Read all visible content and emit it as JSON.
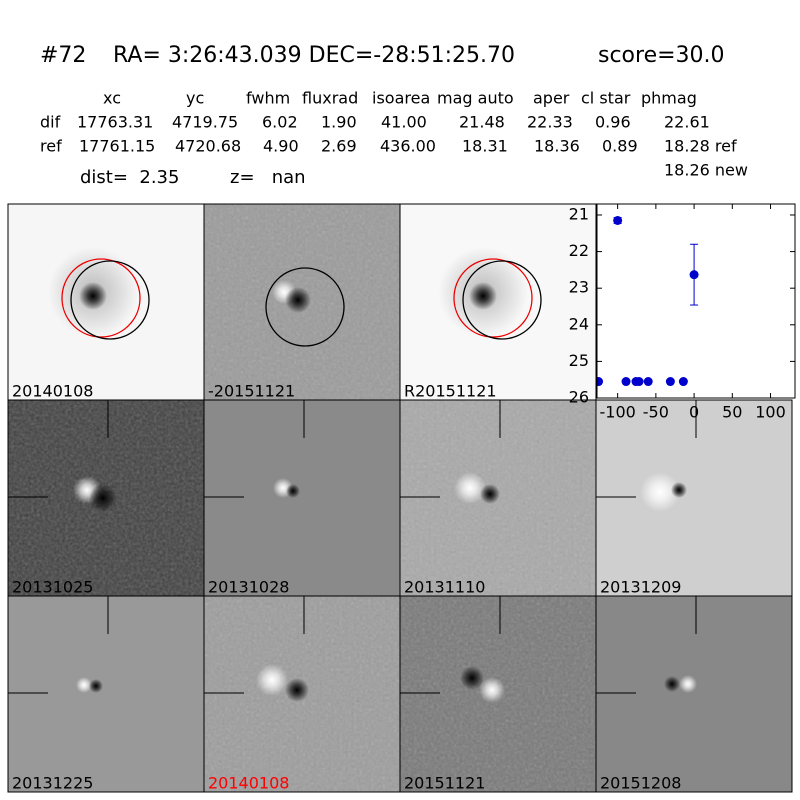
{
  "header": {
    "id": "#72",
    "coords": "RA= 3:26:43.039 DEC=-28:51:25.70",
    "score": "score=30.0"
  },
  "table": {
    "columns": [
      "xc",
      "yc",
      "fwhm",
      "fluxrad",
      "isoarea",
      "mag auto",
      "aper",
      "cl star",
      "phmag"
    ],
    "rows": [
      {
        "label": "dif",
        "cells": [
          "17763.31",
          "4719.75",
          "6.02",
          "1.90",
          "41.00",
          "21.48",
          "22.33",
          "0.96",
          "22.61"
        ]
      },
      {
        "label": "ref",
        "cells": [
          "17761.15",
          "4720.68",
          "4.90",
          "2.69",
          "436.00",
          "18.31",
          "18.36",
          "0.89",
          "18.28 ref"
        ]
      }
    ],
    "note": "18.26 new"
  },
  "dist": "dist=  2.35",
  "z": "z=   nan",
  "panels": [
    {
      "label": "20140108"
    },
    {
      "label": "-20151121"
    },
    {
      "label": "R20151121"
    },
    {
      "label": "20131025"
    },
    {
      "label": "20131028"
    },
    {
      "label": "20131110"
    },
    {
      "label": "20131209"
    },
    {
      "label": "20131225"
    },
    {
      "label": "20140108",
      "color": "#ff0000"
    },
    {
      "label": "20151121"
    },
    {
      "label": "20151208"
    }
  ],
  "chart_data": {
    "type": "scatter",
    "x": [
      -125,
      -100,
      -89,
      -76,
      -72,
      -60,
      -31,
      -14,
      0
    ],
    "values": [
      25.55,
      21.15,
      25.55,
      25.55,
      25.55,
      25.55,
      25.55,
      25.55,
      22.63
    ],
    "errors": [
      0,
      0.08,
      0,
      0,
      0,
      0,
      0,
      0,
      0.83
    ],
    "color": "#0000cc",
    "xlim": [
      -127,
      132
    ],
    "ylim": [
      26,
      20.7
    ],
    "xticks": [
      -100,
      -50,
      0,
      50,
      100
    ],
    "yticks": [
      21,
      22,
      23,
      24,
      25,
      26
    ]
  }
}
